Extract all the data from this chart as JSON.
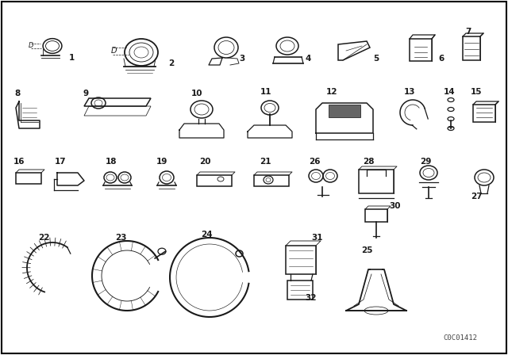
{
  "background_color": "#ffffff",
  "line_color": "#1a1a1a",
  "figure_width": 6.4,
  "figure_height": 4.48,
  "dpi": 100,
  "watermark": "C0C01412",
  "border_color": "#000000",
  "gray_fill": "#888888",
  "light_gray": "#cccccc",
  "dark_gray": "#555555",
  "label_fontsize": 7.5,
  "label_fontweight": "bold"
}
